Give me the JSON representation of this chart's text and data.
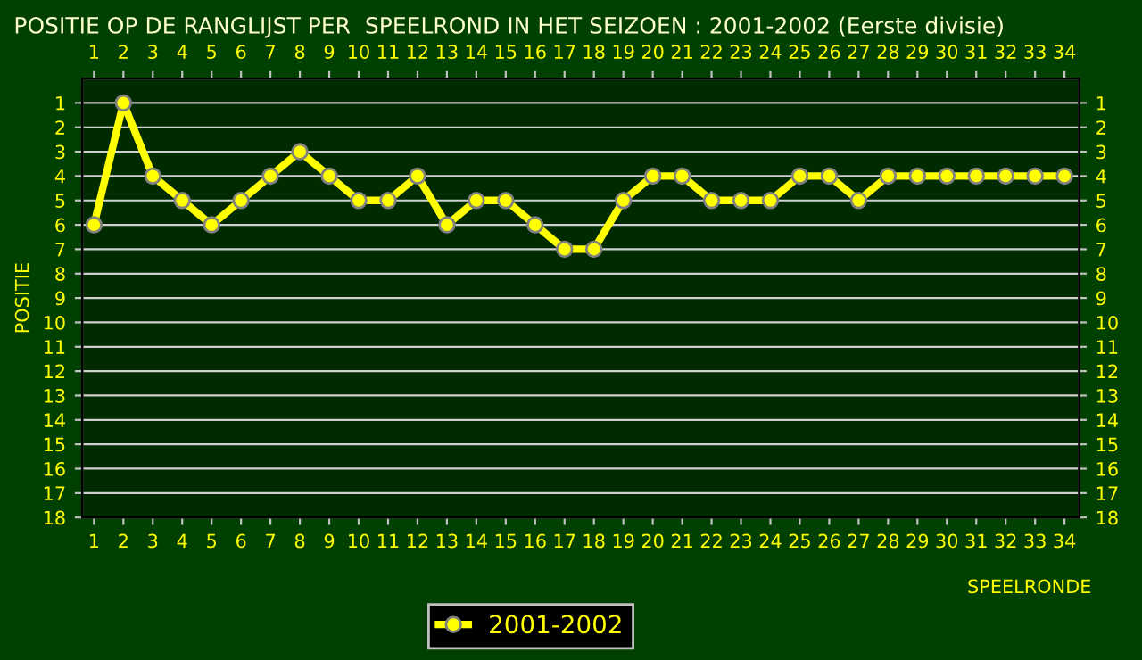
{
  "chart_data": {
    "type": "line",
    "title": "POSITIE OP DE RANGLIJST PER  SPEELROND IN HET SEIZOEN : 2001-2002 (Eerste divisie)",
    "xlabel": "SPEELRONDE",
    "ylabel": "POSITIE",
    "x": [
      1,
      2,
      3,
      4,
      5,
      6,
      7,
      8,
      9,
      10,
      11,
      12,
      13,
      14,
      15,
      16,
      17,
      18,
      19,
      20,
      21,
      22,
      23,
      24,
      25,
      26,
      27,
      28,
      29,
      30,
      31,
      32,
      33,
      34
    ],
    "series": [
      {
        "name": "2001-2002",
        "color": "#ffff00",
        "values": [
          6,
          1,
          4,
          5,
          6,
          5,
          4,
          3,
          4,
          5,
          5,
          4,
          6,
          5,
          5,
          6,
          7,
          7,
          5,
          4,
          4,
          5,
          5,
          5,
          4,
          4,
          5,
          4,
          4,
          4,
          4,
          4,
          4,
          4
        ]
      }
    ],
    "xlim": [
      0.6,
      34.5
    ],
    "xticks": [
      1,
      2,
      3,
      4,
      5,
      6,
      7,
      8,
      9,
      10,
      11,
      12,
      13,
      14,
      15,
      16,
      17,
      18,
      19,
      20,
      21,
      22,
      23,
      24,
      25,
      26,
      27,
      28,
      29,
      30,
      31,
      32,
      33,
      34
    ],
    "x2lim": [
      0.6,
      34.5
    ],
    "x2ticks": [
      1,
      2,
      3,
      4,
      5,
      6,
      7,
      8,
      9,
      10,
      11,
      12,
      13,
      14,
      15,
      16,
      17,
      18,
      19,
      20,
      21,
      22,
      23,
      24,
      25,
      26,
      27,
      28,
      29,
      30,
      31,
      32,
      33,
      34
    ],
    "ylim": [
      18,
      0
    ],
    "yticks": [
      1,
      2,
      3,
      4,
      5,
      6,
      7,
      8,
      9,
      10,
      11,
      12,
      13,
      14,
      15,
      16,
      17,
      18
    ],
    "y2lim": [
      18,
      0
    ],
    "y2ticks": [
      1,
      2,
      3,
      4,
      5,
      6,
      7,
      8,
      9,
      10,
      11,
      12,
      13,
      14,
      15,
      16,
      17,
      18
    ],
    "grid": "y",
    "legend": "bottom",
    "marker": "circle",
    "line_style": "solid"
  }
}
